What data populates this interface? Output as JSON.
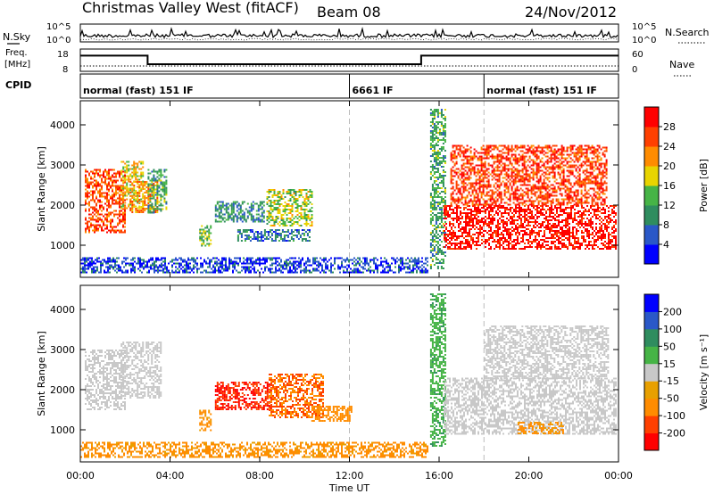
{
  "header": {
    "title": "Christmas Valley West (fitACF)",
    "beam": "Beam 08",
    "date": "24/Nov/2012"
  },
  "strips": {
    "nsky_label": "N.Sky",
    "nsky_ticks": [
      "10^5",
      "10^0"
    ],
    "nsky_ticks_right": [
      "10^5",
      "10^0"
    ],
    "nsearch_label": "N.Search",
    "freq_label_1": "Freq.",
    "freq_label_2": "[MHz]",
    "freq_ticks": [
      "18",
      "8"
    ],
    "nave_ticks": [
      "60",
      "0"
    ],
    "nave_label": "Nave",
    "cpid_label": "CPID",
    "cpid_segments": [
      {
        "label": "normal (fast) 151 IF",
        "start_h": 0
      },
      {
        "label": "6661 IF",
        "start_h": 12
      },
      {
        "label": "normal (fast) 151 IF",
        "start_h": 18
      }
    ],
    "freq_series": {
      "x_h": [
        0,
        3.0,
        3.0,
        15.2,
        15.2,
        24
      ],
      "y_mhz": [
        16.5,
        16.5,
        10.5,
        10.5,
        16.5,
        16.5
      ]
    }
  },
  "chart_data": [
    {
      "type": "heatmap",
      "name": "power",
      "ylabel": "Slant Range [km]",
      "ylim": [
        200,
        4600
      ],
      "yticks": [
        "1000",
        "2000",
        "3000",
        "4000"
      ],
      "colorbar": {
        "label": "Power [dB]",
        "ticks": [
          "28",
          "24",
          "20",
          "16",
          "12",
          "8",
          "4"
        ],
        "colors": [
          "#0000ff",
          "#2a58c8",
          "#2f8d5f",
          "#46b446",
          "#e8d400",
          "#ff8c00",
          "#ff4000",
          "#ff0000"
        ]
      },
      "regions": [
        {
          "t": [
            0.2,
            2.0
          ],
          "r": [
            1300,
            2900
          ],
          "v": 26
        },
        {
          "t": [
            1.8,
            2.8
          ],
          "r": [
            1900,
            3100
          ],
          "v": 18
        },
        {
          "t": [
            2.2,
            3.4
          ],
          "r": [
            1800,
            2600
          ],
          "v": 22
        },
        {
          "t": [
            3.0,
            3.8
          ],
          "r": [
            1800,
            2900
          ],
          "v": 12
        },
        {
          "t": [
            5.3,
            5.8
          ],
          "r": [
            1000,
            1500
          ],
          "v": 14
        },
        {
          "t": [
            6.0,
            8.2
          ],
          "r": [
            1600,
            2100
          ],
          "v": 10
        },
        {
          "t": [
            7.0,
            10.2
          ],
          "r": [
            1100,
            1400
          ],
          "v": 8
        },
        {
          "t": [
            8.3,
            10.3
          ],
          "r": [
            1500,
            2400
          ],
          "v": 16
        },
        {
          "t": [
            0.0,
            15.5
          ],
          "r": [
            300,
            700
          ],
          "v": 5
        },
        {
          "t": [
            15.6,
            16.3
          ],
          "r": [
            400,
            4400
          ],
          "v": 12
        },
        {
          "t": [
            16.2,
            23.9
          ],
          "r": [
            900,
            2000
          ],
          "v": 30
        },
        {
          "t": [
            16.5,
            23.5
          ],
          "r": [
            2000,
            3500
          ],
          "v": 27
        }
      ]
    },
    {
      "type": "heatmap",
      "name": "velocity",
      "ylabel": "Slant Range [km]",
      "xlabel": "Time UT",
      "ylim": [
        200,
        4600
      ],
      "yticks": [
        "1000",
        "2000",
        "3000",
        "4000"
      ],
      "xticks": [
        "00:00",
        "04:00",
        "08:00",
        "12:00",
        "16:00",
        "20:00",
        "00:00"
      ],
      "colorbar": {
        "label": "Velocity [m s⁻¹]",
        "ticks": [
          "200",
          "100",
          "50",
          "15",
          "-15",
          "-50",
          "-100",
          "-200"
        ],
        "colors": [
          "#ff0000",
          "#ff4000",
          "#ff8c00",
          "#e8a000",
          "#c8c8c8",
          "#46b446",
          "#2f8d5f",
          "#2a58c8",
          "#0000ff"
        ]
      },
      "regions": [
        {
          "t": [
            0.2,
            2.0
          ],
          "r": [
            1500,
            3000
          ],
          "v": 0
        },
        {
          "t": [
            1.8,
            3.6
          ],
          "r": [
            1800,
            3200
          ],
          "v": 0
        },
        {
          "t": [
            5.3,
            5.8
          ],
          "r": [
            1000,
            1500
          ],
          "v": -60
        },
        {
          "t": [
            6.0,
            8.5
          ],
          "r": [
            1500,
            2200
          ],
          "v": -200
        },
        {
          "t": [
            8.4,
            10.8
          ],
          "r": [
            1300,
            2400
          ],
          "v": -100
        },
        {
          "t": [
            10.3,
            12.1
          ],
          "r": [
            1200,
            1600
          ],
          "v": -70
        },
        {
          "t": [
            0.0,
            15.5
          ],
          "r": [
            300,
            700
          ],
          "v": -60
        },
        {
          "t": [
            15.6,
            16.3
          ],
          "r": [
            600,
            4400
          ],
          "v": 40
        },
        {
          "t": [
            16.2,
            23.9
          ],
          "r": [
            900,
            2300
          ],
          "v": 0
        },
        {
          "t": [
            18.0,
            23.5
          ],
          "r": [
            2300,
            3600
          ],
          "v": 0
        },
        {
          "t": [
            19.5,
            21.5
          ],
          "r": [
            900,
            1200
          ],
          "v": -60
        }
      ]
    }
  ]
}
